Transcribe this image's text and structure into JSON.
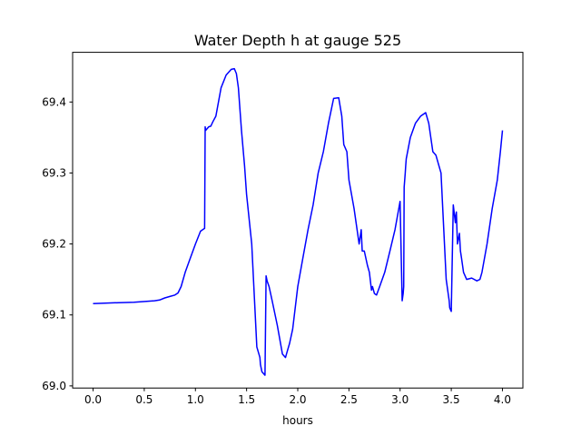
{
  "chart_data": {
    "type": "line",
    "title": "Water Depth h at gauge 525",
    "xlabel": "hours",
    "ylabel": "",
    "xlim": [
      -0.2,
      4.2
    ],
    "ylim": [
      68.997,
      69.47
    ],
    "xticks": [
      "0.0",
      "0.5",
      "1.0",
      "1.5",
      "2.0",
      "2.5",
      "3.0",
      "3.5",
      "4.0"
    ],
    "yticks": [
      "69.0",
      "69.1",
      "69.2",
      "69.3",
      "69.4"
    ],
    "grid": false,
    "legend": "none",
    "series": [
      {
        "color": "#0000ff",
        "x": [
          0.0,
          0.2,
          0.4,
          0.6,
          0.65,
          0.7,
          0.75,
          0.8,
          0.83,
          0.86,
          0.9,
          0.95,
          1.0,
          1.05,
          1.09,
          1.095,
          1.1,
          1.13,
          1.15,
          1.17,
          1.2,
          1.25,
          1.3,
          1.35,
          1.38,
          1.4,
          1.42,
          1.45,
          1.48,
          1.5,
          1.55,
          1.6,
          1.63,
          1.635,
          1.65,
          1.68,
          1.69,
          1.695,
          1.7,
          1.72,
          1.75,
          1.8,
          1.85,
          1.88,
          1.9,
          1.92,
          1.95,
          2.0,
          2.05,
          2.1,
          2.15,
          2.2,
          2.25,
          2.3,
          2.35,
          2.4,
          2.43,
          2.45,
          2.48,
          2.5,
          2.55,
          2.6,
          2.62,
          2.63,
          2.65,
          2.68,
          2.7,
          2.72,
          2.73,
          2.75,
          2.77,
          2.8,
          2.85,
          2.9,
          2.95,
          3.0,
          3.02,
          3.03,
          3.035,
          3.04,
          3.05,
          3.055,
          3.06,
          3.1,
          3.15,
          3.2,
          3.25,
          3.28,
          3.32,
          3.35,
          3.4,
          3.45,
          3.47,
          3.48,
          3.485,
          3.5,
          3.52,
          3.54,
          3.545,
          3.55,
          3.56,
          3.58,
          3.59,
          3.6,
          3.62,
          3.65,
          3.7,
          3.75,
          3.78,
          3.8,
          3.85,
          3.9,
          3.95,
          3.98,
          4.0
        ],
        "values": [
          69.116,
          69.117,
          69.118,
          69.12,
          69.121,
          69.124,
          69.126,
          69.128,
          69.131,
          69.14,
          69.16,
          69.18,
          69.2,
          69.218,
          69.222,
          69.365,
          69.36,
          69.365,
          69.366,
          69.372,
          69.38,
          69.42,
          69.438,
          69.446,
          69.447,
          69.44,
          69.42,
          69.36,
          69.31,
          69.27,
          69.2,
          69.055,
          69.04,
          69.03,
          69.02,
          69.015,
          69.155,
          69.152,
          69.148,
          69.14,
          69.12,
          69.085,
          69.045,
          69.04,
          69.05,
          69.06,
          69.08,
          69.14,
          69.18,
          69.22,
          69.255,
          69.3,
          69.33,
          69.37,
          69.405,
          69.406,
          69.38,
          69.34,
          69.33,
          69.29,
          69.25,
          69.2,
          69.22,
          69.19,
          69.19,
          69.17,
          69.16,
          69.135,
          69.14,
          69.13,
          69.128,
          69.14,
          69.16,
          69.19,
          69.22,
          69.26,
          69.12,
          69.13,
          69.14,
          69.28,
          69.3,
          69.31,
          69.32,
          69.35,
          69.37,
          69.38,
          69.385,
          69.37,
          69.33,
          69.325,
          69.3,
          69.15,
          69.13,
          69.12,
          69.11,
          69.105,
          69.255,
          69.23,
          69.24,
          69.245,
          69.2,
          69.215,
          69.19,
          69.18,
          69.16,
          69.15,
          69.152,
          69.148,
          69.15,
          69.16,
          69.2,
          69.25,
          69.29,
          69.33,
          69.36
        ]
      }
    ]
  }
}
